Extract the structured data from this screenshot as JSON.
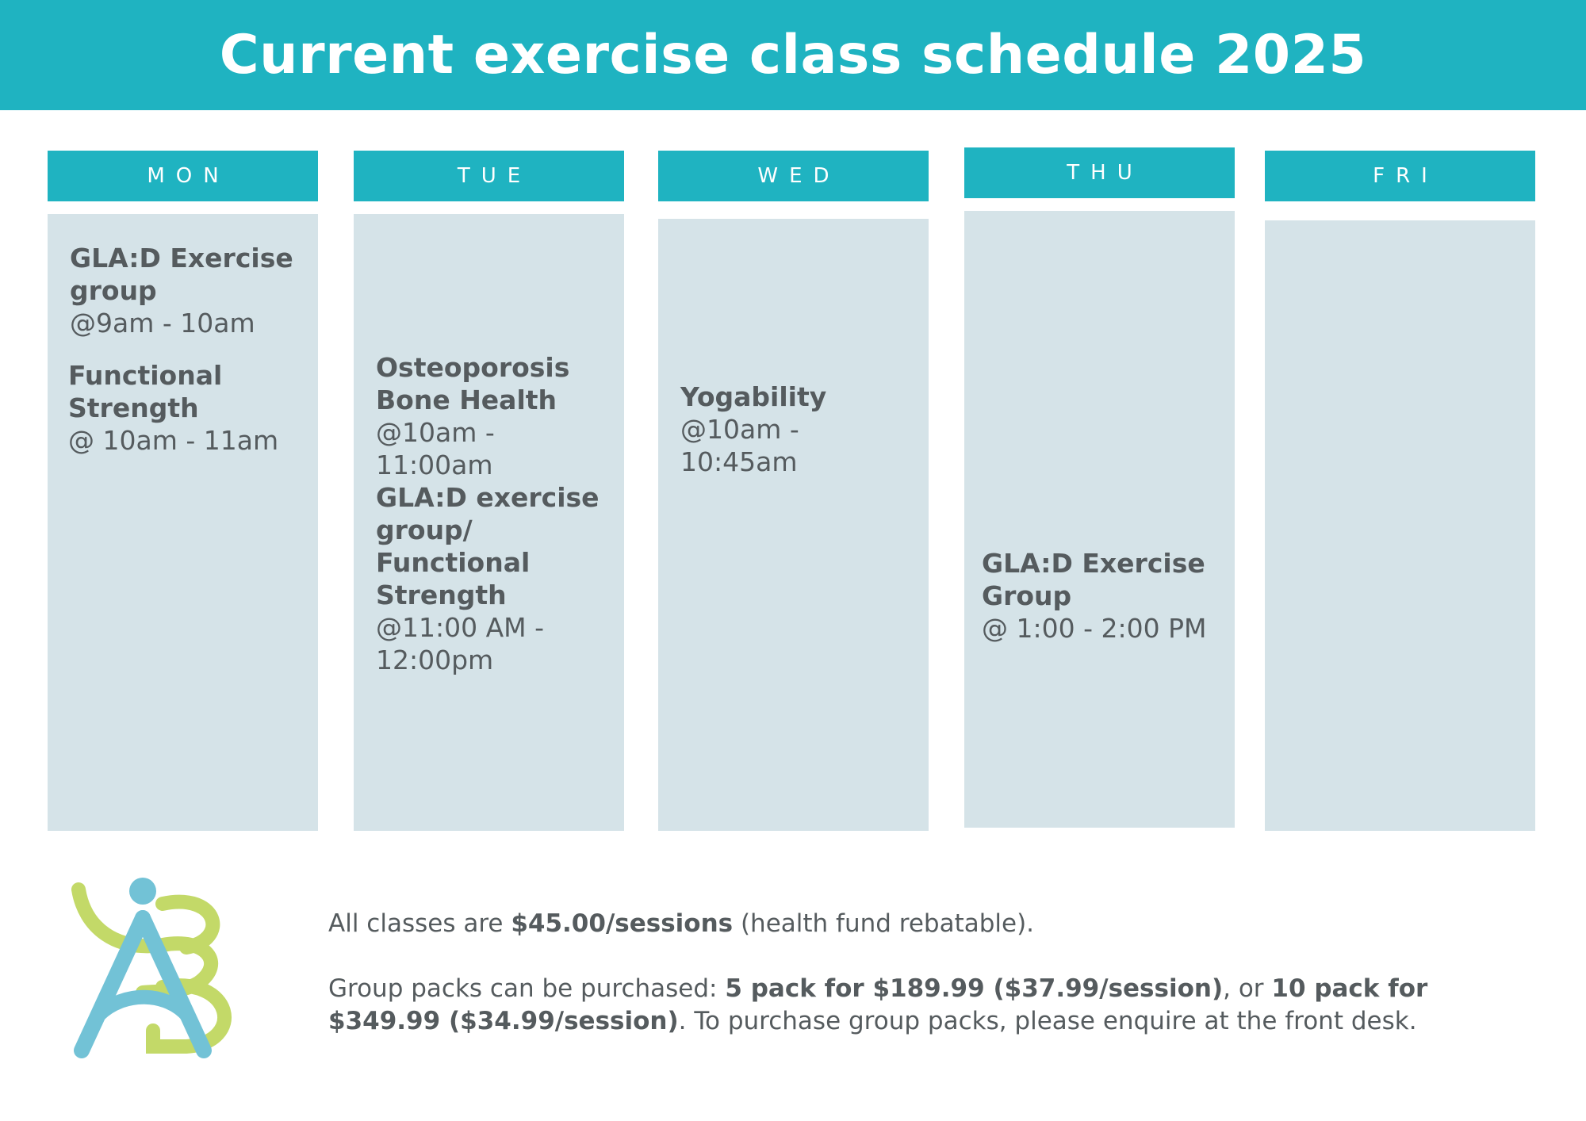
{
  "title": "Current exercise class schedule 2025",
  "days": [
    {
      "label": "MON",
      "classes": [
        {
          "name": "GLA:D Exercise group",
          "time": "@9am - 10am"
        },
        {
          "name": "Functional Strength",
          "time": "@ 10am - 11am"
        }
      ]
    },
    {
      "label": "TUE",
      "classes": [
        {
          "name": "Osteoporosis Bone Health",
          "time": "@10am - 11:00am"
        },
        {
          "name": "GLA:D exercise group/ Functional Strength",
          "time": "@11:00 AM - 12:00pm"
        }
      ]
    },
    {
      "label": "WED",
      "classes": [
        {
          "name": "Yogability",
          "time": "@10am - 10:45am"
        }
      ]
    },
    {
      "label": "THU",
      "classes": [
        {
          "name": "GLA:D Exercise Group",
          "time": "@ 1:00 - 2:00 PM"
        }
      ]
    },
    {
      "label": "FRI",
      "classes": []
    }
  ],
  "footer": {
    "line1": {
      "prefix": "All classes are ",
      "price": "$45.00/sessions",
      "suffix": " (health fund rebatable)."
    },
    "line2": {
      "prefix": "Group packs can be purchased: ",
      "pack5": "5 pack for $189.99 ($37.99/session)",
      "mid": ", or ",
      "pack10": "10 pack for $349.99 ($34.99/session)",
      "suffix": ". To purchase group packs, please enquire at the front desk."
    }
  },
  "logo": {
    "name": "ab-logo",
    "colors": {
      "blue": "#72c2d6",
      "green": "#c3d968"
    }
  },
  "colors": {
    "accent": "#1fb3c1",
    "column": "#d5e3e8",
    "text": "#555b5e"
  }
}
